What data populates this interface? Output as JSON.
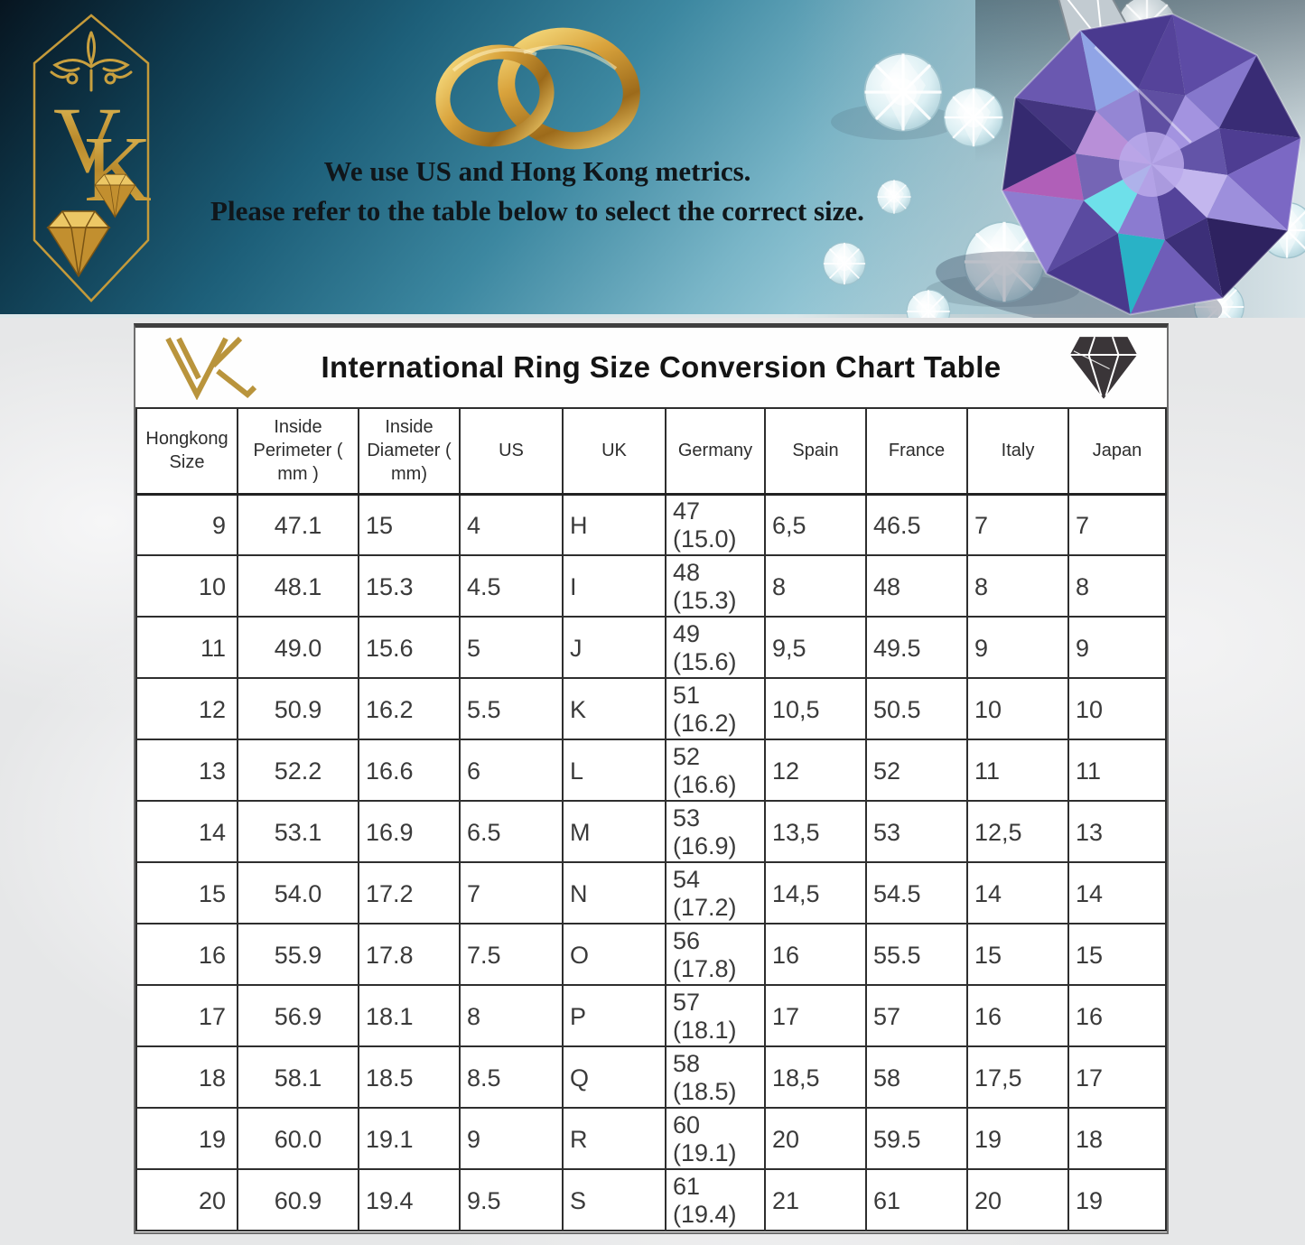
{
  "banner": {
    "logo_text": "VK",
    "caption_line1": "We use US and Hong Kong metrics.",
    "caption_line2": "Please refer to the table below to select the correct size."
  },
  "chart": {
    "title": "International Ring Size Conversion Chart Table",
    "columns": [
      "Hongkong Size",
      "Inside Perimeter ( mm )",
      "Inside Diameter ( mm)",
      "US",
      "UK",
      "Germany",
      "Spain",
      "France",
      "Italy",
      "Japan"
    ],
    "rows": [
      [
        "9",
        "47.1",
        "15",
        "4",
        "H",
        "47 (15.0)",
        "6,5",
        "46.5",
        "7",
        "7"
      ],
      [
        "10",
        "48.1",
        "15.3",
        "4.5",
        "I",
        "48 (15.3)",
        "8",
        "48",
        "8",
        "8"
      ],
      [
        "11",
        "49.0",
        "15.6",
        "5",
        "J",
        "49 (15.6)",
        "9,5",
        "49.5",
        "9",
        "9"
      ],
      [
        "12",
        "50.9",
        "16.2",
        "5.5",
        "K",
        "51 (16.2)",
        "10,5",
        "50.5",
        "10",
        "10"
      ],
      [
        "13",
        "52.2",
        "16.6",
        "6",
        "L",
        "52 (16.6)",
        "12",
        "52",
        "11",
        "11"
      ],
      [
        "14",
        "53.1",
        "16.9",
        "6.5",
        "M",
        "53 (16.9)",
        "13,5",
        "53",
        "12,5",
        "13"
      ],
      [
        "15",
        "54.0",
        "17.2",
        "7",
        "N",
        "54 (17.2)",
        "14,5",
        "54.5",
        "14",
        "14"
      ],
      [
        "16",
        "55.9",
        "17.8",
        "7.5",
        "O",
        "56 (17.8)",
        "16",
        "55.5",
        "15",
        "15"
      ],
      [
        "17",
        "56.9",
        "18.1",
        "8",
        "P",
        "57 (18.1)",
        "17",
        "57",
        "16",
        "16"
      ],
      [
        "18",
        "58.1",
        "18.5",
        "8.5",
        "Q",
        "58 (18.5)",
        "18,5",
        "58",
        "17,5",
        "17"
      ],
      [
        "19",
        "60.0",
        "19.1",
        "9",
        "R",
        "60 (19.1)",
        "20",
        "59.5",
        "19",
        "18"
      ],
      [
        "20",
        "60.9",
        "19.4",
        "9.5",
        "S",
        "61 (19.4)",
        "21",
        "61",
        "20",
        "19"
      ]
    ]
  },
  "icons": {
    "banner_left": "vk-hexagon-badge",
    "banner_center": "gold-wedding-rings",
    "banner_right": "diamond-photo",
    "title_left": "vk-monogram",
    "title_right": "black-diamond"
  },
  "colors": {
    "gold": "#b9943c",
    "banner_teal": "#2f7a93",
    "gem_purple": "#5d4ba5",
    "table_border": "#2e2e2e"
  }
}
